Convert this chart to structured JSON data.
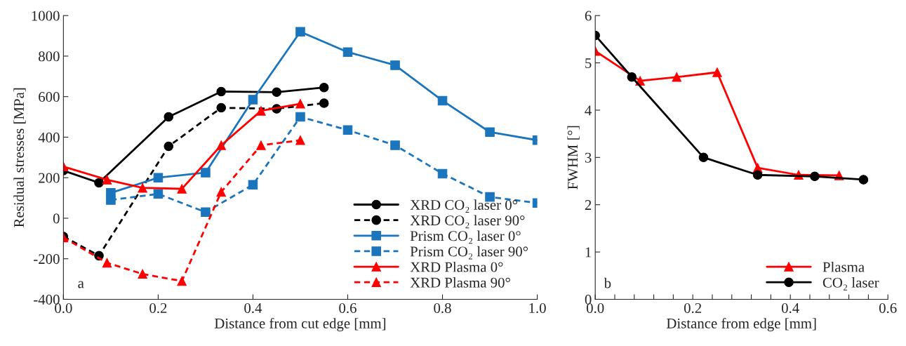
{
  "chart_data": [
    {
      "type": "line",
      "xlabel": "Distance from cut edge [mm]",
      "ylabel": "Residual stresses [MPa]",
      "annotations": [
        "a"
      ],
      "xlim": [
        0,
        1.0
      ],
      "xticks": [
        {
          "value": 0,
          "label": "0.0"
        },
        0.2,
        0.4,
        0.6,
        0.8,
        {
          "value": 1.0,
          "label": "1.0"
        }
      ],
      "ylim": [
        -400,
        1000
      ],
      "yticks": [
        -400,
        -200,
        0,
        200,
        400,
        600,
        800,
        1000
      ],
      "grid": false,
      "legend": "bottom right",
      "series": [
        {
          "name": "XRD CO₂ laser 0°",
          "color": "#000000",
          "marker": "circle",
          "line_style": "solid",
          "x": [
            0,
            0.075,
            0.222,
            0.333,
            0.45,
            0.55
          ],
          "values": [
            235,
            175,
            500,
            625,
            622,
            645
          ]
        },
        {
          "name": "XRD CO₂ laser 90°",
          "color": "#000000",
          "marker": "circle",
          "line_style": "dashed",
          "x": [
            0,
            0.075,
            0.222,
            0.333,
            0.45,
            0.55
          ],
          "values": [
            -90,
            -185,
            355,
            545,
            540,
            568
          ]
        },
        {
          "name": "Prism CO₂ laser 0°",
          "color": "#1a75bc",
          "marker": "square",
          "line_style": "solid",
          "x": [
            0.1,
            0.2,
            0.3,
            0.4,
            0.5,
            0.6,
            0.7,
            0.8,
            0.9,
            1.0
          ],
          "values": [
            125,
            200,
            225,
            585,
            920,
            820,
            755,
            580,
            425,
            385
          ]
        },
        {
          "name": "Prism CO₂ laser 90°",
          "color": "#1a75bc",
          "marker": "square",
          "line_style": "dashed",
          "x": [
            0.1,
            0.2,
            0.3,
            0.4,
            0.5,
            0.6,
            0.7,
            0.8,
            0.9,
            1.0
          ],
          "values": [
            90,
            120,
            30,
            165,
            500,
            435,
            360,
            220,
            105,
            75
          ]
        },
        {
          "name": "XRD Plasma 0°",
          "color": "#ff0000",
          "marker": "triangle",
          "line_style": "solid",
          "x": [
            0,
            0.092,
            0.167,
            0.25,
            0.333,
            0.417,
            0.5
          ],
          "values": [
            255,
            190,
            150,
            145,
            360,
            530,
            565
          ]
        },
        {
          "name": "XRD Plasma 90°",
          "color": "#ff0000",
          "marker": "triangle",
          "line_style": "dashed",
          "x": [
            0,
            0.092,
            0.167,
            0.25,
            0.333,
            0.417,
            0.5
          ],
          "values": [
            -95,
            -220,
            -275,
            -310,
            130,
            360,
            385
          ]
        }
      ]
    },
    {
      "type": "line",
      "xlabel": "Distance from edge [mm]",
      "ylabel": "FWHM [°]",
      "annotations": [
        "b"
      ],
      "xlim": [
        0,
        0.6
      ],
      "xticks": [
        {
          "value": 0,
          "label": "0.0"
        },
        {
          "value": 0.04,
          "label": null
        },
        {
          "value": 0.08,
          "label": null
        },
        {
          "value": 0.12,
          "label": null
        },
        {
          "value": 0.16,
          "label": null
        },
        0.2,
        {
          "value": 0.24,
          "label": null
        },
        {
          "value": 0.28,
          "label": null
        },
        {
          "value": 0.32,
          "label": null
        },
        {
          "value": 0.36,
          "label": null
        },
        0.4,
        {
          "value": 0.44,
          "label": null
        },
        {
          "value": 0.48,
          "label": null
        },
        {
          "value": 0.52,
          "label": null
        },
        {
          "value": 0.56,
          "label": null
        },
        0.6
      ],
      "ylim": [
        0,
        6
      ],
      "yticks": [
        0,
        1,
        2,
        3,
        4,
        5,
        6
      ],
      "grid": false,
      "legend": "bottom right",
      "series": [
        {
          "name": "Plasma",
          "color": "#ff0000",
          "marker": "triangle",
          "line_style": "solid",
          "x": [
            0,
            0.092,
            0.167,
            0.25,
            0.333,
            0.417,
            0.5
          ],
          "values": [
            5.25,
            4.62,
            4.7,
            4.8,
            2.78,
            2.63,
            2.62
          ]
        },
        {
          "name": "CO₂ laser",
          "color": "#000000",
          "marker": "circle",
          "line_style": "solid",
          "x": [
            0,
            0.075,
            0.222,
            0.333,
            0.45,
            0.55
          ],
          "values": [
            5.58,
            4.7,
            3.0,
            2.63,
            2.6,
            2.53
          ]
        }
      ]
    }
  ]
}
